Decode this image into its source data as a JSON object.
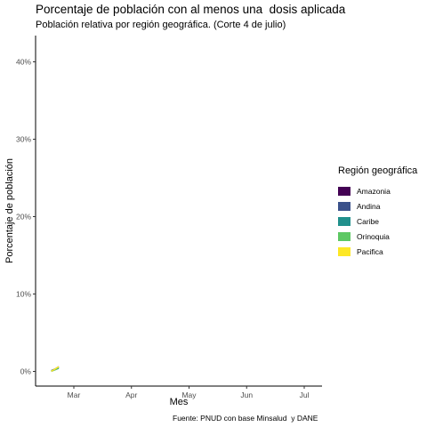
{
  "title": "Porcentaje de población con al menos una  dosis aplicada",
  "subtitle": "Población relativa por región geográfica. (Corte 4 de julio)",
  "caption": "Fuente: PNUD con base Minsalud  y DANE",
  "chart_data": {
    "type": "line",
    "xlabel": "Mes",
    "ylabel": "Porcentaje de población",
    "x_ticks": [
      "Mar",
      "Apr",
      "May",
      "Jun",
      "Jul"
    ],
    "y_ticks": [
      "0%",
      "10%",
      "20%",
      "30%",
      "40%"
    ],
    "ylim": [
      0,
      40
    ],
    "grid": false,
    "legend_title": "Región geográfica",
    "legend_position": "right",
    "series": [
      {
        "name": "Amazonia",
        "color": "#440154",
        "x": [
          "2021-02-17",
          "2021-02-19",
          "2021-02-21"
        ],
        "values": [
          0.1,
          0.3,
          0.6
        ]
      },
      {
        "name": "Andina",
        "color": "#3b528b",
        "x": [
          "2021-02-17",
          "2021-02-19",
          "2021-02-21"
        ],
        "values": [
          0.1,
          0.3,
          0.5
        ]
      },
      {
        "name": "Caribe",
        "color": "#21908c",
        "x": [
          "2021-02-17",
          "2021-02-19",
          "2021-02-21"
        ],
        "values": [
          0.0,
          0.2,
          0.4
        ]
      },
      {
        "name": "Orinoquia",
        "color": "#5dc863",
        "x": [
          "2021-02-17",
          "2021-02-19",
          "2021-02-21"
        ],
        "values": [
          0.1,
          0.2,
          0.5
        ]
      },
      {
        "name": "Pacifica",
        "color": "#fde725",
        "x": [
          "2021-02-17",
          "2021-02-19",
          "2021-02-21"
        ],
        "values": [
          0.0,
          0.3,
          0.6
        ]
      }
    ]
  }
}
